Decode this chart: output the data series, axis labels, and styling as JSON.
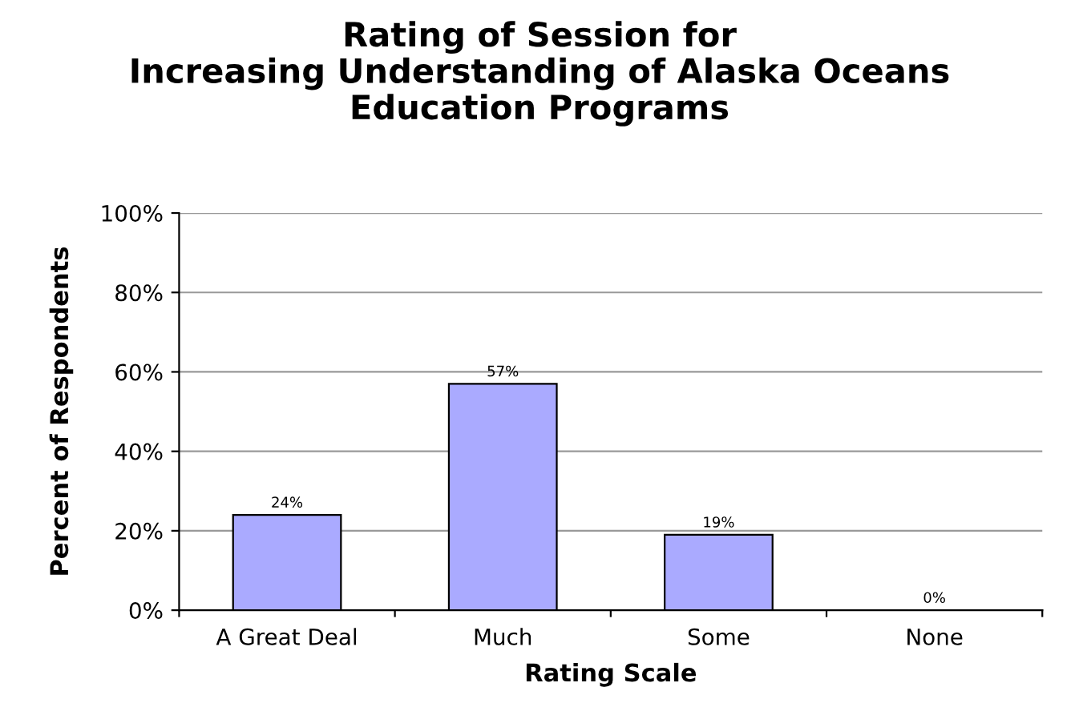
{
  "chart_data": {
    "type": "bar",
    "title": "Rating of Session for\nIncreasing Understanding of Alaska Oceans\nEducation Programs",
    "xlabel": "Rating Scale",
    "ylabel": "Percent of Respondents",
    "categories": [
      "A Great Deal",
      "Much",
      "Some",
      "None"
    ],
    "values": [
      24,
      57,
      19,
      0
    ],
    "value_labels": [
      "24%",
      "57%",
      "19%",
      "0%"
    ],
    "color": "#aaaaff",
    "ylim": [
      0,
      100
    ],
    "yticks": [
      {
        "value": 0,
        "label": "0%"
      },
      {
        "value": 20,
        "label": "20%"
      },
      {
        "value": 40,
        "label": "40%"
      },
      {
        "value": 60,
        "label": "60%"
      },
      {
        "value": 80,
        "label": "80%"
      },
      {
        "value": 100,
        "label": "100%"
      }
    ],
    "grid": "y",
    "legend": false
  }
}
